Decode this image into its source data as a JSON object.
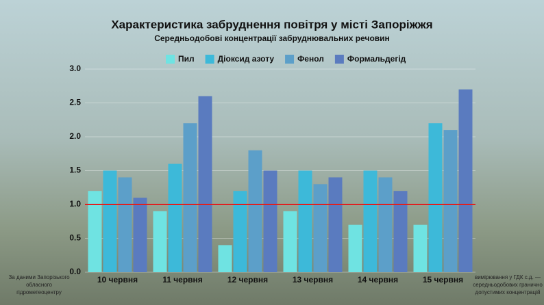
{
  "chart_data": {
    "type": "bar",
    "title": "Характеристика забруднення повітря у місті Запоріжжя",
    "subtitle": "Середньодобові концентрації забруднювальних речовин",
    "categories": [
      "10 червня",
      "11 червня",
      "12 червня",
      "13 червня",
      "14 червня",
      "15 червня"
    ],
    "series": [
      {
        "name": "Пил",
        "color": "#6fe3e2",
        "values": [
          1.2,
          0.9,
          0.4,
          0.9,
          0.7,
          0.7
        ]
      },
      {
        "name": "Діоксид азоту",
        "color": "#3db9d9",
        "values": [
          1.5,
          1.6,
          1.2,
          1.5,
          1.5,
          2.2
        ]
      },
      {
        "name": "Фенол",
        "color": "#5c9fc9",
        "values": [
          1.4,
          2.2,
          1.8,
          1.3,
          1.4,
          2.1
        ]
      },
      {
        "name": "Формальдегід",
        "color": "#5a7bbf",
        "values": [
          1.1,
          2.6,
          1.5,
          1.4,
          1.2,
          2.7
        ]
      }
    ],
    "ylim": [
      0,
      3
    ],
    "yticks": [
      {
        "value": 0,
        "label": "0.0"
      },
      0.5,
      {
        "value": 1,
        "label": "1.0"
      },
      1.5,
      {
        "value": 2,
        "label": "2.0"
      },
      2.5,
      {
        "value": 3,
        "label": "3.0"
      }
    ],
    "grid": true,
    "legend": "top",
    "reference_line": {
      "value": 1,
      "color": "#e02020"
    },
    "source_note": [
      "За даними Запорізького",
      "обласного",
      "гідрометеоцентру"
    ],
    "unit_note": [
      "вимірювання у ГДК с.д. —",
      "середньодобових гранично",
      "допустимих концентрацій"
    ]
  }
}
